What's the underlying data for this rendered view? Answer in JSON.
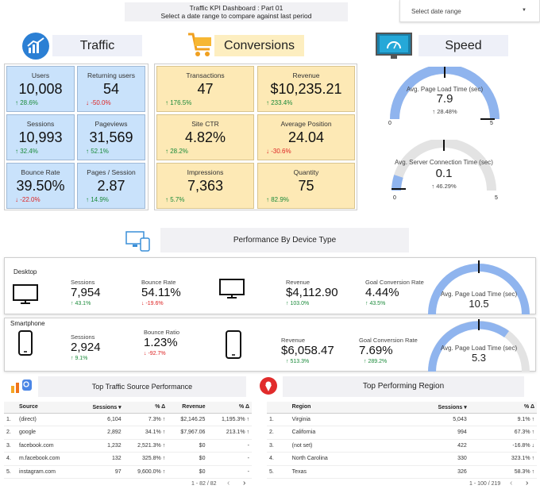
{
  "header": {
    "title_line1": "Traffic KPI Dashboard : Part 01",
    "title_line2": "Select a date range to compare against last period",
    "date_range_placeholder": "Select date range"
  },
  "sections": {
    "traffic": "Traffic",
    "conversions": "Conversions",
    "speed": "Speed",
    "device": "Performance By Device Type",
    "sources": "Top Traffic Source Performance",
    "region": "Top Performing Region"
  },
  "traffic_kpis": [
    {
      "label": "Users",
      "value": "10,008",
      "change": "↑ 28.6%"
    },
    {
      "label": "Returning users",
      "value": "54",
      "change": "↓ -50.0%"
    },
    {
      "label": "Sessions",
      "value": "10,993",
      "change": "↑ 32.4%"
    },
    {
      "label": "Pageviews",
      "value": "31,569",
      "change": "↑ 52.1%"
    },
    {
      "label": "Bounce Rate",
      "value": "39.50%",
      "change": "↓ -22.0%"
    },
    {
      "label": "Pages / Session",
      "value": "2.87",
      "change": "↑ 14.9%"
    }
  ],
  "conversion_kpis": [
    {
      "label": "Transactions",
      "value": "47",
      "change": "↑ 176.5%"
    },
    {
      "label": "Revenue",
      "value": "$10,235.21",
      "change": "↑ 233.4%"
    },
    {
      "label": "Site CTR",
      "value": "4.82%",
      "change": "↑ 28.2%"
    },
    {
      "label": "Average Position",
      "value": "24.04",
      "change": "↓ -30.6%"
    },
    {
      "label": "Impressions",
      "value": "7,363",
      "change": "↑ 5.7%"
    },
    {
      "label": "Quantity",
      "value": "75",
      "change": "↑ 82.9%"
    }
  ],
  "speed": {
    "page_load": {
      "label": "Avg. Page Load Time (sec)",
      "value": "7.9",
      "change": "↑ 28.48%",
      "min": "0",
      "max": "5"
    },
    "server_conn": {
      "label": "Avg. Server Connection Time (sec)",
      "value": "0.1",
      "change": "↑ 46.29%",
      "min": "0",
      "max": "5"
    }
  },
  "devices": [
    {
      "name": "Desktop",
      "sessions_label": "Sessions",
      "sessions": "7,954",
      "sessions_change": "↑ 43.1%",
      "bounce_label": "Bounce Rate",
      "bounce": "54.11%",
      "bounce_change": "↓ -19.6%",
      "revenue_label": "Revenue",
      "revenue": "$4,112.90",
      "revenue_change": "↑ 103.0%",
      "goal_label": "Goal Conversion Rate",
      "goal": "4.44%",
      "goal_change": "↑ 43.5%",
      "gauge_label": "Avg. Page Load Time (sec)",
      "gauge_value": "10.5"
    },
    {
      "name": "Smartphone",
      "sessions_label": "Sessions",
      "sessions": "2,924",
      "sessions_change": "↑ 9.1%",
      "bounce_label": "Bounce Ratio",
      "bounce": "1.23%",
      "bounce_change": "↓ -92.7%",
      "revenue_label": "Revenue",
      "revenue": "$6,058.47",
      "revenue_change": "↑ 513.3%",
      "goal_label": "Goal Conversion Rate",
      "goal": "7.69%",
      "goal_change": "↑ 289.2%",
      "gauge_label": "Avg. Page Load Time (sec)",
      "gauge_value": "5.3"
    }
  ],
  "sources_table": {
    "headers": [
      "Source",
      "Sessions ▾",
      "% Δ",
      "Revenue",
      "% Δ"
    ],
    "rows": [
      [
        "1.",
        "(direct)",
        "6,104",
        "7.3% ↑",
        "$2,146.25",
        "1,195.3% ↑"
      ],
      [
        "2.",
        "google",
        "2,892",
        "34.1% ↑",
        "$7,967.06",
        "213.1% ↑"
      ],
      [
        "3.",
        "facebook.com",
        "1,232",
        "2,521.3% ↑",
        "$0",
        "-"
      ],
      [
        "4.",
        "m.facebook.com",
        "132",
        "325.8% ↑",
        "$0",
        "-"
      ],
      [
        "5.",
        "instagram.com",
        "97",
        "9,600.0% ↑",
        "$0",
        "-"
      ]
    ],
    "pager": "1 - 82 / 82"
  },
  "region_table": {
    "headers": [
      "Region",
      "Sessions ▾",
      "% Δ"
    ],
    "rows": [
      [
        "1.",
        "Virginia",
        "5,043",
        "9.1% ↑"
      ],
      [
        "2.",
        "California",
        "994",
        "67.3% ↑"
      ],
      [
        "3.",
        "(not set)",
        "422",
        "-16.8% ↓"
      ],
      [
        "4.",
        "North Carolina",
        "330",
        "323.1% ↑"
      ],
      [
        "5.",
        "Texas",
        "326",
        "58.3% ↑"
      ]
    ],
    "pager": "1 - 100 / 219"
  },
  "colors": {
    "blue_card": "#c9e2fb",
    "yellow_card": "#fde9b5",
    "gauge": "#8fb4ee",
    "up": "#1a8a3a",
    "down": "#d22"
  }
}
